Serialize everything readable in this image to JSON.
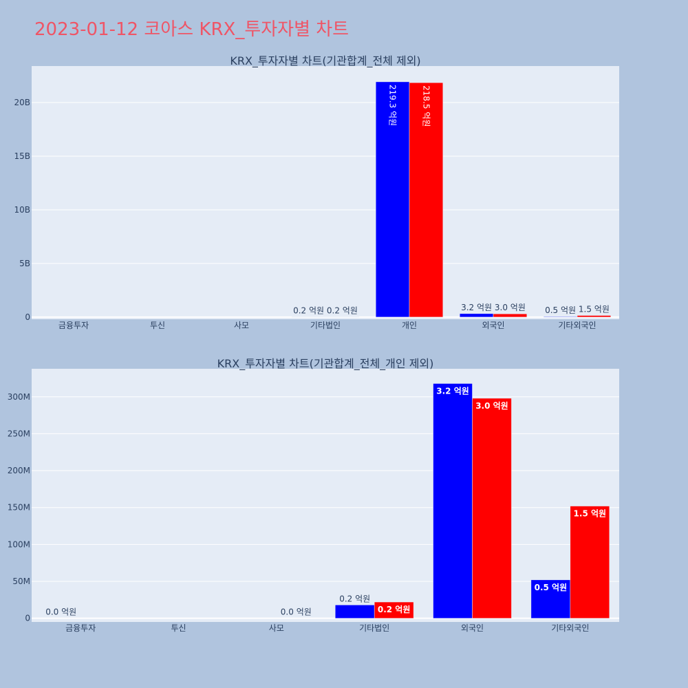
{
  "title": "2023-01-12 코아스 KRX_투자자별 차트",
  "colors": {
    "page_background": "#b0c4de",
    "plot_background": "#e5ecf6",
    "gridline": "#ffffff",
    "title": "#ef5566",
    "text": "#2a3f5f",
    "series_blue": "#0000ff",
    "series_red": "#ff0000"
  },
  "chart_data": [
    {
      "type": "bar",
      "title": "KRX_투자자별 차트(기관합계_전체 제외)",
      "categories": [
        "금융투자",
        "투신",
        "사모",
        "기타법인",
        "개인",
        "외국인",
        "기타외국인"
      ],
      "ylim": [
        -200000000,
        23400000000
      ],
      "yticks": [
        0,
        5000000000,
        10000000000,
        15000000000,
        20000000000
      ],
      "ytick_labels": [
        "0",
        "5B",
        "10B",
        "15B",
        "20B"
      ],
      "grid": true,
      "series": [
        {
          "color": "#0000ff",
          "values": [
            0,
            0,
            0,
            20000000,
            21930000000,
            320000000,
            50000000
          ],
          "labels": [
            "",
            "",
            "",
            "0.2 억원",
            "219.3 억원",
            "3.2 억원",
            "0.5 억원"
          ],
          "label_position": [
            "",
            "",
            "",
            "outside",
            "inside-rotated",
            "outside",
            "outside"
          ]
        },
        {
          "color": "#ff0000",
          "values": [
            0,
            0,
            0,
            20000000,
            21850000000,
            300000000,
            150000000
          ],
          "labels": [
            "",
            "",
            "",
            "0.2 억원",
            "218.5 억원",
            "3.0 억원",
            "1.5 억원"
          ],
          "label_position": [
            "",
            "",
            "",
            "outside",
            "inside-rotated",
            "outside",
            "outside"
          ]
        }
      ]
    },
    {
      "type": "bar",
      "title": "KRX_투자자별 차트(기관합계_전체_개인 제외)",
      "categories": [
        "금융투자",
        "투신",
        "사모",
        "기타법인",
        "외국인",
        "기타외국인"
      ],
      "ylim": [
        -5000000,
        338000000
      ],
      "yticks": [
        0,
        50000000,
        100000000,
        150000000,
        200000000,
        250000000,
        300000000
      ],
      "ytick_labels": [
        "0",
        "50M",
        "100M",
        "150M",
        "200M",
        "250M",
        "300M"
      ],
      "grid": true,
      "series": [
        {
          "color": "#0000ff",
          "values": [
            0,
            0,
            0,
            18000000,
            318000000,
            52000000
          ],
          "labels": [
            "0.0 억원",
            "",
            "",
            "0.2 억원",
            "3.2 억원",
            "0.5 억원"
          ],
          "label_position": [
            "outside",
            "",
            "",
            "outside",
            "inside",
            "inside"
          ]
        },
        {
          "color": "#ff0000",
          "values": [
            0,
            0,
            0,
            22000000,
            298000000,
            152000000
          ],
          "labels": [
            "",
            "",
            "0.0 억원",
            "0.2 억원",
            "3.0 억원",
            "1.5 억원"
          ],
          "label_position": [
            "",
            "",
            "outside",
            "inside",
            "inside",
            "inside"
          ]
        }
      ]
    }
  ]
}
